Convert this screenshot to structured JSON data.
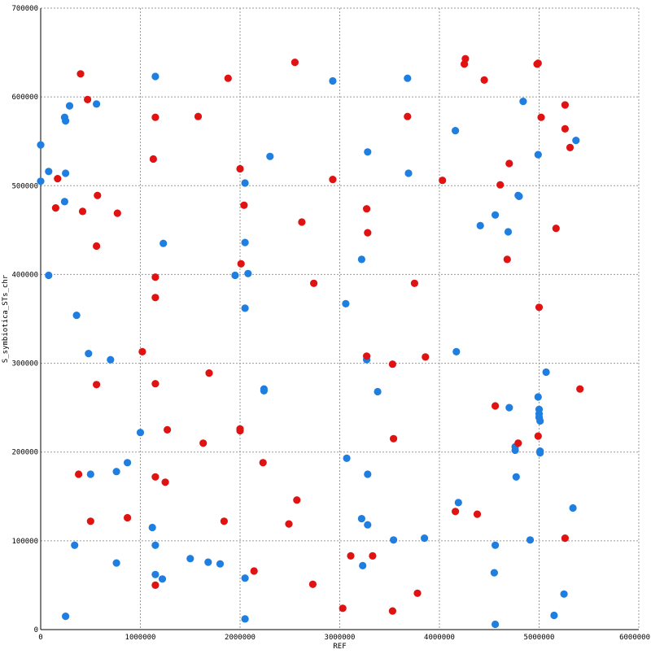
{
  "chart_data": {
    "type": "scatter",
    "xlabel": "REF",
    "ylabel": "S_symbiotica_STs_chr",
    "xlim": [
      0,
      6000000
    ],
    "ylim": [
      0,
      700000
    ],
    "grid": true,
    "x_ticks": [
      "0",
      "1000000",
      "2000000",
      "3000000",
      "4000000",
      "5000000",
      "6000000"
    ],
    "y_ticks": [
      "0",
      "100000",
      "200000",
      "300000",
      "400000",
      "500000",
      "600000",
      "700000"
    ],
    "series": [
      {
        "color": "#1f7fe0",
        "points": [
          [
            0,
            546000
          ],
          [
            0,
            505000
          ],
          [
            80000,
            516000
          ],
          [
            80000,
            399000
          ],
          [
            240000,
            577000
          ],
          [
            250000,
            573000
          ],
          [
            250000,
            514000
          ],
          [
            240000,
            482000
          ],
          [
            290000,
            590000
          ],
          [
            560000,
            592000
          ],
          [
            360000,
            354000
          ],
          [
            480000,
            311000
          ],
          [
            700000,
            304000
          ],
          [
            500000,
            175000
          ],
          [
            760000,
            178000
          ],
          [
            870000,
            188000
          ],
          [
            340000,
            95000
          ],
          [
            760000,
            75000
          ],
          [
            250000,
            15000
          ],
          [
            1000000,
            222000
          ],
          [
            1120000,
            115000
          ],
          [
            1150000,
            95000
          ],
          [
            1150000,
            62000
          ],
          [
            1220000,
            57000
          ],
          [
            1150000,
            623000
          ],
          [
            1230000,
            435000
          ],
          [
            1500000,
            80000
          ],
          [
            1680000,
            76000
          ],
          [
            1800000,
            74000
          ],
          [
            1950000,
            399000
          ],
          [
            2050000,
            503000
          ],
          [
            2050000,
            436000
          ],
          [
            2080000,
            401000
          ],
          [
            2050000,
            362000
          ],
          [
            2050000,
            58000
          ],
          [
            2050000,
            12000
          ],
          [
            2240000,
            271000
          ],
          [
            2240000,
            269000
          ],
          [
            2300000,
            533000
          ],
          [
            2930000,
            618000
          ],
          [
            3060000,
            367000
          ],
          [
            3070000,
            193000
          ],
          [
            3220000,
            417000
          ],
          [
            3220000,
            125000
          ],
          [
            3230000,
            72000
          ],
          [
            3270000,
            304000
          ],
          [
            3280000,
            538000
          ],
          [
            3280000,
            175000
          ],
          [
            3280000,
            118000
          ],
          [
            3380000,
            268000
          ],
          [
            3540000,
            101000
          ],
          [
            3680000,
            621000
          ],
          [
            3690000,
            514000
          ],
          [
            3850000,
            103000
          ],
          [
            4160000,
            562000
          ],
          [
            4170000,
            313000
          ],
          [
            4190000,
            143000
          ],
          [
            4410000,
            455000
          ],
          [
            4560000,
            467000
          ],
          [
            4550000,
            64000
          ],
          [
            4560000,
            95000
          ],
          [
            4560000,
            6000
          ],
          [
            4690000,
            448000
          ],
          [
            4700000,
            250000
          ],
          [
            4760000,
            206000
          ],
          [
            4760000,
            202000
          ],
          [
            4770000,
            172000
          ],
          [
            4790000,
            489000
          ],
          [
            4800000,
            488000
          ],
          [
            4840000,
            595000
          ],
          [
            4910000,
            101000
          ],
          [
            4990000,
            535000
          ],
          [
            4990000,
            262000
          ],
          [
            5000000,
            248000
          ],
          [
            5000000,
            243000
          ],
          [
            5000000,
            239000
          ],
          [
            5010000,
            235000
          ],
          [
            5010000,
            201000
          ],
          [
            5010000,
            199000
          ],
          [
            5070000,
            290000
          ],
          [
            5150000,
            16000
          ],
          [
            5250000,
            40000
          ],
          [
            5340000,
            137000
          ],
          [
            5370000,
            551000
          ]
        ]
      },
      {
        "color": "#e01212",
        "points": [
          [
            400000,
            626000
          ],
          [
            470000,
            597000
          ],
          [
            150000,
            475000
          ],
          [
            170000,
            508000
          ],
          [
            420000,
            471000
          ],
          [
            570000,
            489000
          ],
          [
            560000,
            432000
          ],
          [
            770000,
            469000
          ],
          [
            560000,
            276000
          ],
          [
            380000,
            175000
          ],
          [
            500000,
            122000
          ],
          [
            870000,
            126000
          ],
          [
            1020000,
            313000
          ],
          [
            1130000,
            530000
          ],
          [
            1150000,
            577000
          ],
          [
            1150000,
            397000
          ],
          [
            1150000,
            374000
          ],
          [
            1150000,
            277000
          ],
          [
            1150000,
            172000
          ],
          [
            1150000,
            50000
          ],
          [
            1250000,
            166000
          ],
          [
            1270000,
            225000
          ],
          [
            1580000,
            578000
          ],
          [
            1630000,
            210000
          ],
          [
            1690000,
            289000
          ],
          [
            1840000,
            122000
          ],
          [
            1880000,
            621000
          ],
          [
            2000000,
            519000
          ],
          [
            2010000,
            412000
          ],
          [
            2000000,
            226000
          ],
          [
            2000000,
            224000
          ],
          [
            2040000,
            478000
          ],
          [
            2140000,
            66000
          ],
          [
            2230000,
            188000
          ],
          [
            2490000,
            119000
          ],
          [
            2550000,
            639000
          ],
          [
            2570000,
            146000
          ],
          [
            2620000,
            459000
          ],
          [
            2740000,
            390000
          ],
          [
            2730000,
            51000
          ],
          [
            2930000,
            507000
          ],
          [
            3030000,
            24000
          ],
          [
            3110000,
            83000
          ],
          [
            3270000,
            474000
          ],
          [
            3270000,
            308000
          ],
          [
            3280000,
            447000
          ],
          [
            3330000,
            83000
          ],
          [
            3530000,
            299000
          ],
          [
            3530000,
            21000
          ],
          [
            3540000,
            215000
          ],
          [
            3680000,
            578000
          ],
          [
            3750000,
            390000
          ],
          [
            3780000,
            41000
          ],
          [
            3860000,
            307000
          ],
          [
            4030000,
            506000
          ],
          [
            4160000,
            133000
          ],
          [
            4250000,
            637000
          ],
          [
            4260000,
            643000
          ],
          [
            4380000,
            130000
          ],
          [
            4450000,
            619000
          ],
          [
            4560000,
            252000
          ],
          [
            4610000,
            501000
          ],
          [
            4680000,
            417000
          ],
          [
            4700000,
            525000
          ],
          [
            4790000,
            210000
          ],
          [
            4980000,
            637000
          ],
          [
            4990000,
            638000
          ],
          [
            4990000,
            218000
          ],
          [
            5000000,
            363000
          ],
          [
            5020000,
            577000
          ],
          [
            5170000,
            452000
          ],
          [
            5260000,
            591000
          ],
          [
            5260000,
            564000
          ],
          [
            5260000,
            103000
          ],
          [
            5310000,
            543000
          ],
          [
            5410000,
            271000
          ]
        ]
      }
    ]
  }
}
